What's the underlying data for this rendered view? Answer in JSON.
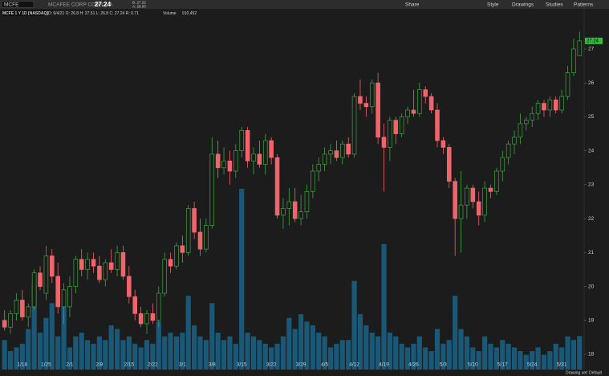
{
  "header": {
    "symbol": "MCFE",
    "company": "MCAFEE CORP COM CL A",
    "bid": "B: 27.22",
    "ask": "A: 28.00",
    "ohlc": "D: 6/4/21   O: 26.8   H: 27.51   L: 26.8   C: 27.24   R: 0.71",
    "volume_label": "Volume",
    "volume": "910,452"
  },
  "toolbar": [
    "Share",
    "Style",
    "Drawings",
    "Studies",
    "Patterns"
  ],
  "footer": "Drawing set: Default",
  "chart_data": {
    "type": "candlestick",
    "title": "MCFE 1 Y 1D [NASDAQ]",
    "categories": [
      null,
      null,
      null,
      "1/18",
      null,
      null,
      null,
      "1/25",
      null,
      null,
      null,
      "2/1",
      null,
      null,
      null,
      null,
      "2/8",
      null,
      null,
      null,
      null,
      "2/15",
      null,
      null,
      null,
      "2/22",
      null,
      null,
      null,
      null,
      "3/1",
      null,
      null,
      null,
      null,
      "3/8",
      null,
      null,
      null,
      null,
      "3/15",
      null,
      null,
      null,
      null,
      "3/22",
      null,
      null,
      null,
      null,
      "3/29",
      null,
      null,
      null,
      "4/5",
      null,
      null,
      null,
      null,
      "4/12",
      null,
      null,
      null,
      null,
      "4/19",
      null,
      null,
      null,
      null,
      "4/26",
      null,
      null,
      null,
      null,
      "5/3",
      null,
      null,
      null,
      null,
      "5/10",
      null,
      null,
      null,
      null,
      "5/17",
      null,
      null,
      null,
      null,
      "5/24",
      null,
      null,
      null,
      null,
      "5/31",
      null,
      null,
      null
    ],
    "open": [
      19.0,
      18.8,
      19.2,
      19.6,
      19.1,
      19.4,
      20.4,
      19.8,
      20.9,
      20.3,
      19.4,
      19.4,
      20.0,
      20.8,
      20.5,
      20.8,
      20.6,
      20.2,
      20.7,
      20.5,
      21.0,
      20.3,
      19.7,
      19.2,
      18.9,
      19.2,
      19.0,
      19.8,
      20.8,
      20.6,
      21.2,
      21.0,
      22.3,
      21.6,
      21.1,
      21.8,
      23.9,
      23.5,
      23.7,
      23.4,
      24.0,
      24.6,
      23.7,
      23.9,
      23.6,
      24.3,
      23.8,
      22.1,
      22.3,
      22.5,
      22.0,
      22.2,
      22.8,
      23.4,
      23.6,
      23.9,
      24.0,
      23.8,
      24.2,
      23.9,
      25.6,
      25.4,
      25.3,
      26.0,
      24.4,
      24.1,
      24.9,
      24.5,
      25.0,
      25.2,
      25.1,
      25.8,
      25.6,
      25.2,
      24.3,
      24.1,
      23.1,
      22.0,
      22.4,
      22.9,
      22.5,
      22.1,
      22.9,
      22.8,
      23.4,
      23.8,
      24.2,
      24.4,
      24.8,
      24.9,
      25.1,
      25.4,
      25.2,
      25.5,
      25.2,
      25.6,
      26.3,
      26.8
    ],
    "high": [
      19.3,
      19.3,
      19.8,
      19.9,
      19.5,
      20.5,
      20.6,
      21.2,
      21.1,
      20.7,
      20.1,
      20.3,
      20.9,
      21.1,
      21.0,
      21.0,
      20.9,
      20.8,
      21.1,
      21.2,
      21.2,
      20.6,
      19.9,
      19.4,
      19.3,
      19.5,
      20.0,
      21.0,
      21.0,
      21.3,
      21.5,
      22.4,
      22.5,
      22.0,
      22.0,
      24.4,
      24.3,
      24.1,
      24.0,
      24.2,
      24.7,
      24.7,
      24.1,
      24.3,
      24.5,
      24.4,
      23.9,
      22.6,
      22.9,
      22.9,
      22.7,
      23.0,
      23.6,
      23.8,
      24.1,
      24.2,
      24.3,
      24.3,
      24.4,
      25.7,
      26.1,
      25.6,
      26.1,
      26.3,
      24.8,
      25.0,
      25.0,
      25.1,
      25.3,
      25.8,
      26.0,
      25.9,
      25.7,
      25.4,
      24.4,
      24.2,
      23.2,
      23.4,
      23.0,
      23.0,
      22.8,
      23.1,
      23.0,
      23.5,
      24.0,
      24.3,
      24.6,
      25.1,
      25.0,
      25.3,
      25.5,
      25.5,
      25.6,
      25.6,
      25.8,
      26.5,
      27.3,
      27.51
    ],
    "low": [
      18.7,
      18.6,
      19.0,
      19.0,
      18.8,
      19.3,
      19.9,
      19.6,
      20.1,
      19.2,
      18.9,
      19.1,
      19.8,
      20.3,
      20.2,
      20.4,
      20.1,
      20.0,
      20.4,
      20.3,
      20.2,
      19.5,
      19.0,
      18.8,
      18.6,
      18.9,
      18.8,
      19.7,
      20.4,
      20.5,
      20.7,
      20.9,
      21.4,
      20.9,
      21.0,
      21.7,
      23.2,
      23.3,
      23.0,
      23.2,
      23.8,
      23.5,
      23.3,
      23.5,
      23.3,
      23.6,
      22.0,
      21.7,
      21.8,
      21.9,
      21.8,
      22.0,
      22.6,
      23.1,
      23.4,
      23.6,
      23.7,
      23.6,
      23.8,
      23.8,
      25.2,
      25.0,
      25.1,
      24.2,
      22.8,
      23.7,
      24.2,
      24.4,
      24.8,
      25.0,
      25.0,
      25.4,
      25.1,
      24.1,
      23.9,
      22.9,
      20.9,
      21.0,
      22.0,
      22.3,
      21.8,
      21.9,
      22.6,
      22.7,
      23.1,
      23.6,
      23.9,
      24.2,
      24.6,
      24.7,
      24.9,
      25.0,
      25.0,
      25.1,
      25.1,
      25.5,
      26.2,
      26.8
    ],
    "close": [
      18.8,
      19.2,
      19.6,
      19.1,
      19.4,
      20.4,
      20.0,
      20.9,
      20.3,
      19.4,
      19.9,
      20.0,
      20.8,
      20.5,
      20.8,
      20.6,
      20.2,
      20.7,
      20.5,
      21.0,
      20.3,
      19.7,
      19.2,
      18.9,
      19.2,
      19.0,
      19.8,
      20.8,
      20.6,
      21.2,
      21.0,
      22.3,
      21.6,
      21.1,
      21.8,
      23.9,
      23.5,
      23.7,
      23.4,
      24.0,
      24.6,
      23.7,
      23.9,
      23.6,
      24.3,
      23.8,
      22.1,
      22.3,
      22.5,
      22.0,
      22.2,
      22.8,
      23.4,
      23.6,
      23.9,
      24.0,
      23.8,
      24.2,
      23.9,
      25.6,
      25.4,
      25.3,
      26.0,
      24.4,
      24.1,
      24.9,
      24.5,
      25.0,
      25.2,
      25.1,
      25.8,
      25.6,
      25.2,
      24.3,
      24.1,
      23.1,
      22.0,
      22.4,
      22.9,
      22.5,
      22.1,
      22.9,
      22.8,
      23.4,
      23.8,
      24.2,
      24.4,
      24.8,
      24.9,
      25.1,
      25.4,
      25.2,
      25.5,
      25.2,
      25.6,
      26.3,
      27.0,
      27.24
    ],
    "volume": [
      0.8,
      0.5,
      0.6,
      0.7,
      1.1,
      2.3,
      1.0,
      1.4,
      1.8,
      0.9,
      1.7,
      0.6,
      0.9,
      1.0,
      0.8,
      0.7,
      0.9,
      0.8,
      1.2,
      1.1,
      0.8,
      0.9,
      0.7,
      0.6,
      0.8,
      0.7,
      1.3,
      0.9,
      1.0,
      0.9,
      1.0,
      2.0,
      1.2,
      0.9,
      0.8,
      1.8,
      1.0,
      0.8,
      0.9,
      0.7,
      4.9,
      1.0,
      0.9,
      0.8,
      0.7,
      0.6,
      0.7,
      0.9,
      1.4,
      1.1,
      1.5,
      1.3,
      1.2,
      1.0,
      0.9,
      0.6,
      0.7,
      0.8,
      0.8,
      2.4,
      1.5,
      1.2,
      1.0,
      0.9,
      3.4,
      1.0,
      0.9,
      0.7,
      0.6,
      0.7,
      0.9,
      0.6,
      0.5,
      1.1,
      0.7,
      0.8,
      2.0,
      1.1,
      0.9,
      0.6,
      0.5,
      0.9,
      0.7,
      0.6,
      0.8,
      0.7,
      0.6,
      0.5,
      0.4,
      0.5,
      0.6,
      0.4,
      0.5,
      0.7,
      0.6,
      0.9,
      0.8,
      0.91
    ],
    "up_color": "#3da63f",
    "down_color": "#f0646c",
    "volume_color": "#1a5878",
    "ylim": [
      17.55,
      28.16
    ],
    "yticks": [
      18,
      19,
      20,
      21,
      22,
      23,
      24,
      25,
      26,
      27
    ]
  }
}
